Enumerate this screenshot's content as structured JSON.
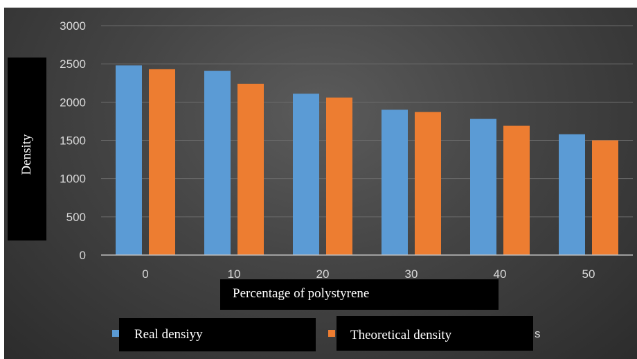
{
  "chart_data": {
    "type": "bar",
    "xlabel": "Percentage of polystyrene",
    "ylabel": "Density",
    "categories": [
      "0",
      "10",
      "20",
      "30",
      "40",
      "50"
    ],
    "series": [
      {
        "name": "Real densiyy",
        "values": [
          2480,
          2410,
          2110,
          1900,
          1780,
          1580
        ],
        "color": "#5b9bd5"
      },
      {
        "name": "Theoretical density",
        "values": [
          2430,
          2240,
          2060,
          1870,
          1690,
          1500
        ],
        "color": "#ed7d31"
      }
    ],
    "ylim": [
      0,
      3000
    ],
    "yticks": [
      "0",
      "500",
      "1000",
      "1500",
      "2000",
      "2500",
      "3000"
    ],
    "grid": true,
    "legend_position": "bottom",
    "legend_trailing_visible_text": "s"
  }
}
